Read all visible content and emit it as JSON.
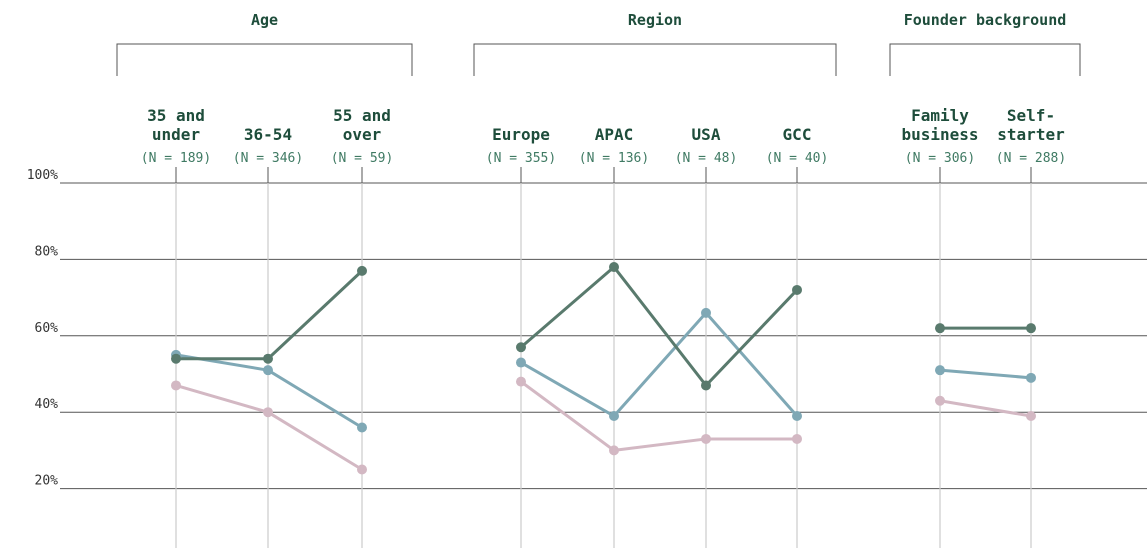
{
  "colors": {
    "heading": "#1e4d3b",
    "n_label": "#3f7a63",
    "axis_text": "#333333",
    "gridline": "#555555",
    "vertical_line": "#cccccc",
    "bracket": "#555555"
  },
  "chart_data": {
    "type": "line",
    "ylim": [
      0,
      100
    ],
    "y_ticks": [
      {
        "value": 100,
        "label": "100%"
      },
      {
        "value": 80,
        "label": "80%"
      },
      {
        "value": 60,
        "label": "60%"
      },
      {
        "value": 40,
        "label": "40%"
      },
      {
        "value": 20,
        "label": "20%"
      }
    ],
    "grid": true,
    "legend": "none",
    "groups": [
      {
        "title": "Age",
        "categories": [
          {
            "label": [
              "35 and",
              "under"
            ],
            "n": "(N = 189)"
          },
          {
            "label": [
              "36-54"
            ],
            "n": "(N = 346)"
          },
          {
            "label": [
              "55 and",
              "over"
            ],
            "n": "(N = 59)"
          }
        ],
        "series": [
          {
            "color": "#597a6d",
            "values": [
              54,
              54,
              77
            ]
          },
          {
            "color": "#7fa8b5",
            "values": [
              55,
              51,
              36
            ]
          },
          {
            "color": "#d3b8c3",
            "values": [
              47,
              40,
              25
            ]
          }
        ]
      },
      {
        "title": "Region",
        "categories": [
          {
            "label": [
              "Europe"
            ],
            "n": "(N = 355)"
          },
          {
            "label": [
              "APAC"
            ],
            "n": "(N = 136)"
          },
          {
            "label": [
              "USA"
            ],
            "n": "(N = 48)"
          },
          {
            "label": [
              "GCC"
            ],
            "n": "(N = 40)"
          }
        ],
        "series": [
          {
            "color": "#597a6d",
            "values": [
              57,
              78,
              47,
              72
            ]
          },
          {
            "color": "#7fa8b5",
            "values": [
              53,
              39,
              66,
              39
            ]
          },
          {
            "color": "#d3b8c3",
            "values": [
              48,
              30,
              33,
              33
            ]
          }
        ]
      },
      {
        "title": "Founder background",
        "categories": [
          {
            "label": [
              "Family",
              "business"
            ],
            "n": "(N = 306)"
          },
          {
            "label": [
              "Self-",
              "starter"
            ],
            "n": "(N = 288)"
          }
        ],
        "series": [
          {
            "color": "#597a6d",
            "values": [
              62,
              62
            ]
          },
          {
            "color": "#7fa8b5",
            "values": [
              51,
              49
            ]
          },
          {
            "color": "#d3b8c3",
            "values": [
              43,
              39
            ]
          }
        ]
      }
    ]
  }
}
